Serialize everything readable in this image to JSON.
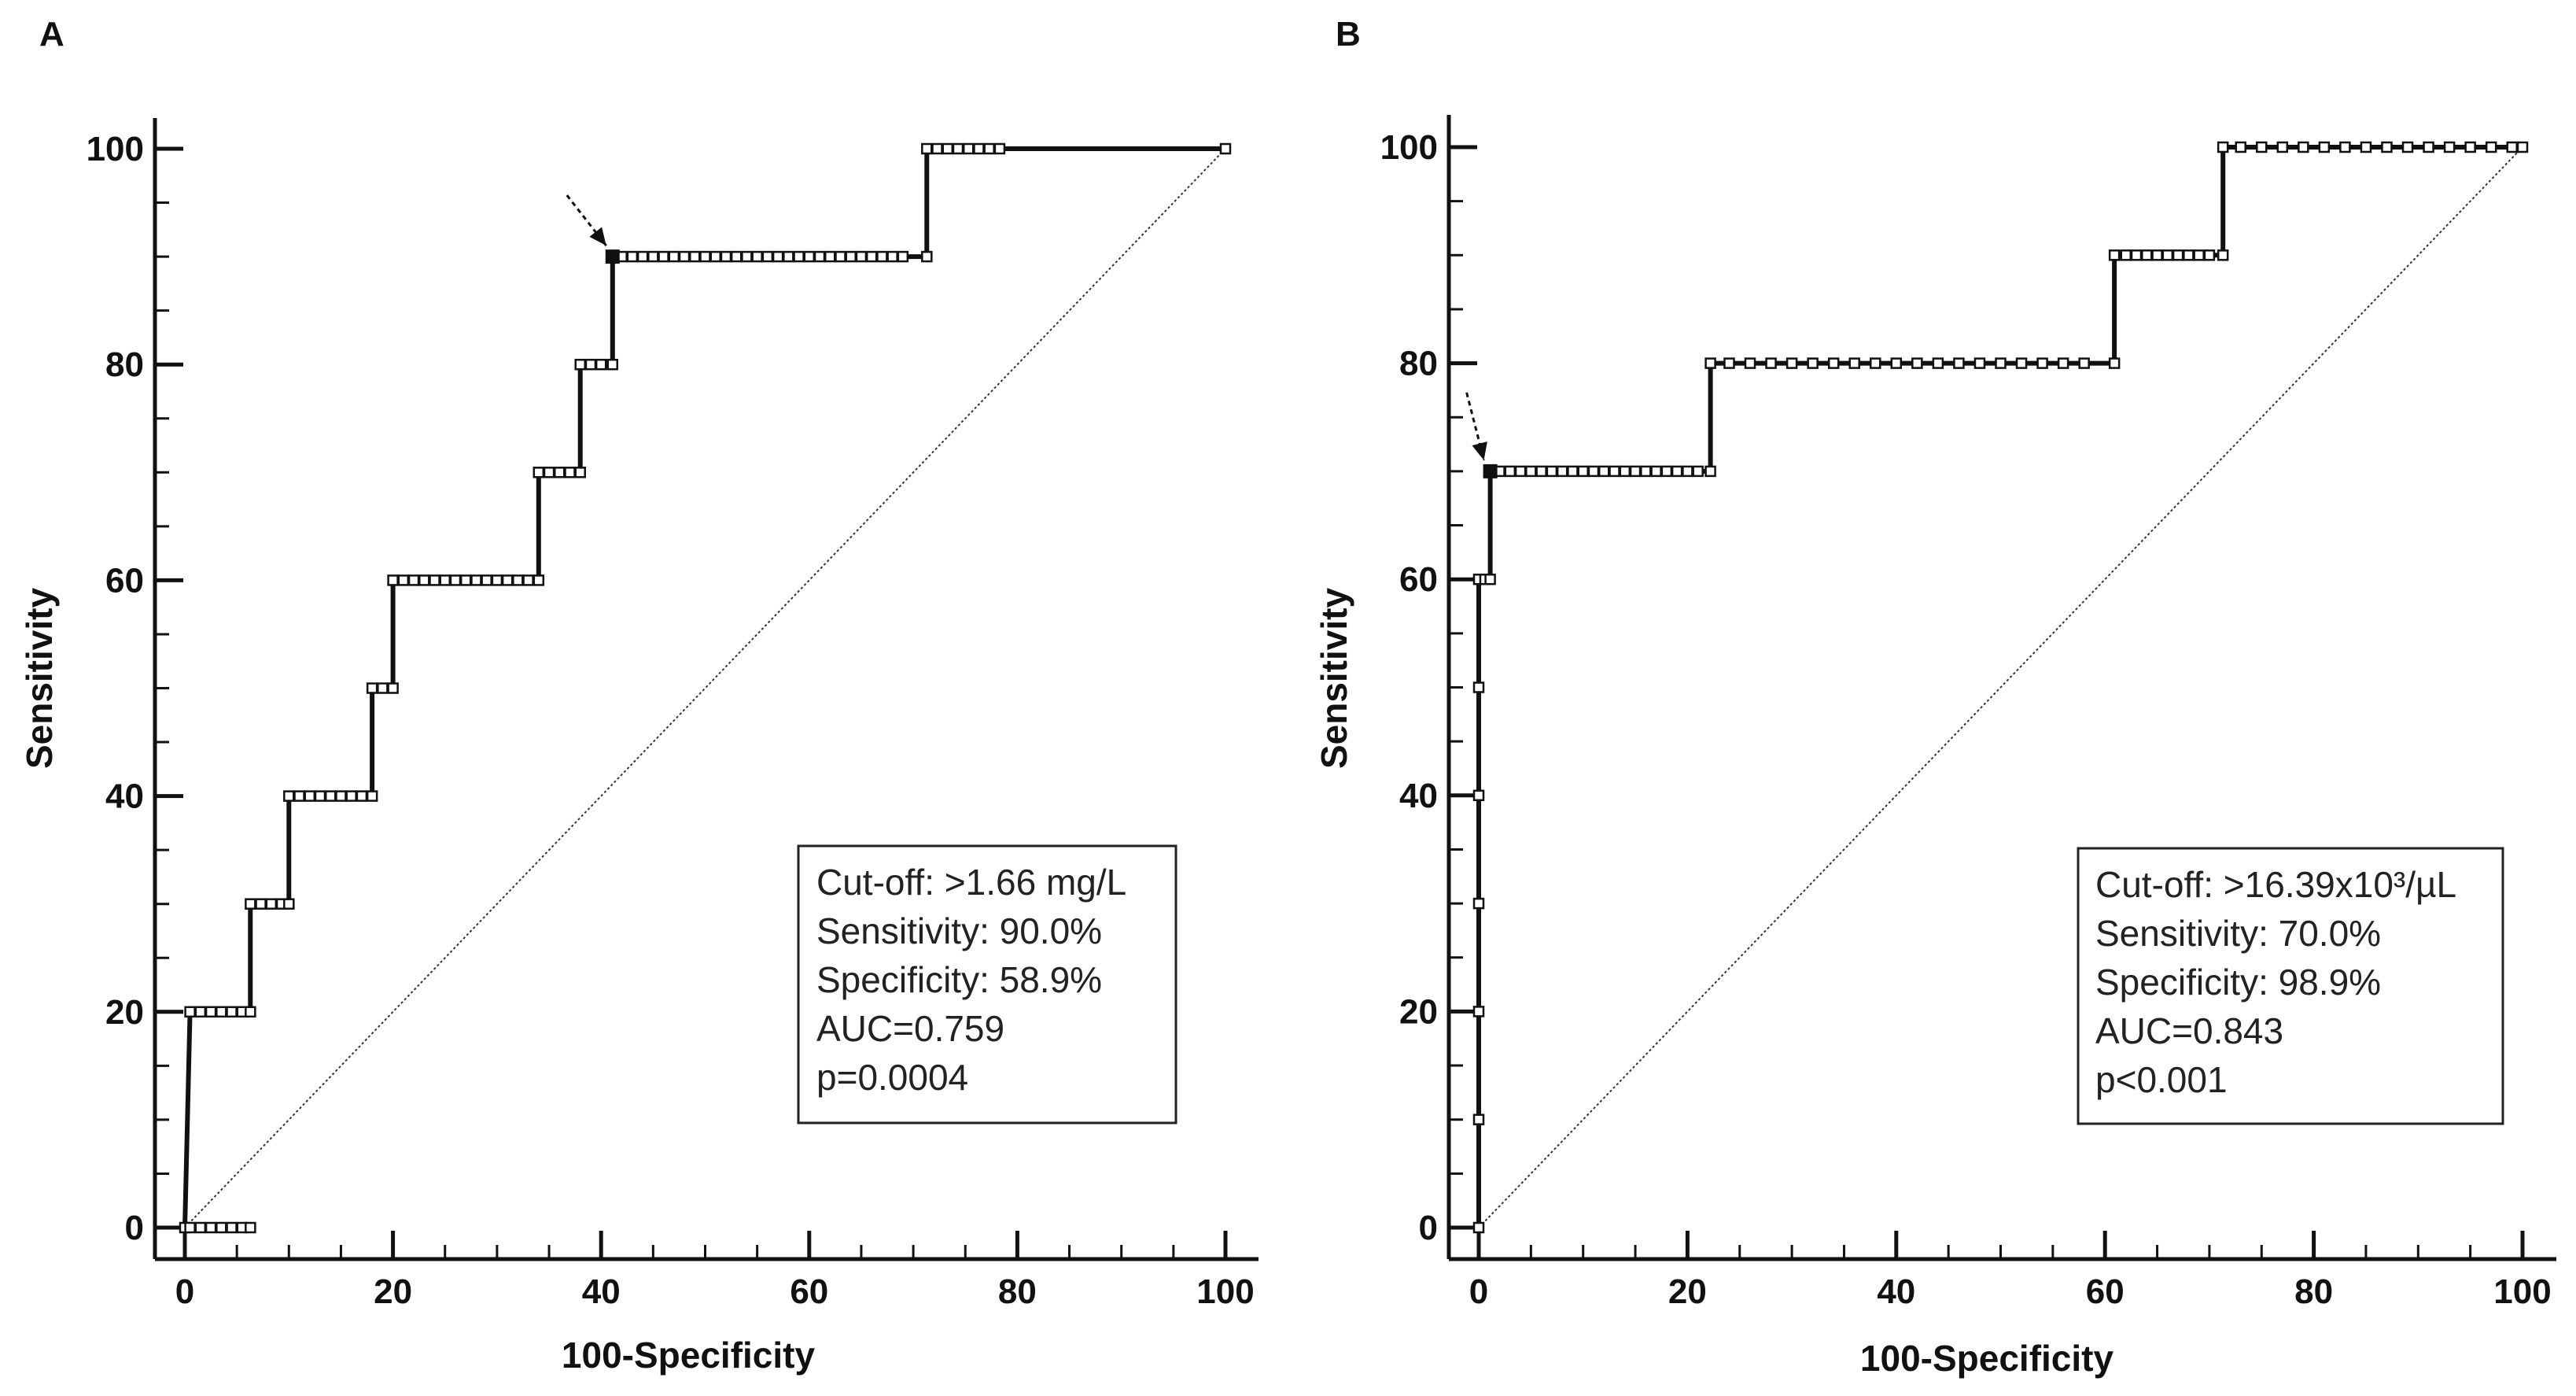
{
  "figure": {
    "background": "#ffffff",
    "ink": "#111111"
  },
  "chart_data": [
    {
      "panel": "A",
      "type": "line",
      "xlabel": "100-Specificity",
      "ylabel": "Sensitivity",
      "xlim": [
        0,
        100
      ],
      "ylim": [
        0,
        100
      ],
      "xticks": [
        "0",
        "20",
        "40",
        "60",
        "80",
        "100"
      ],
      "yticks": [
        "0",
        "20",
        "40",
        "60",
        "80",
        "100"
      ],
      "grid": false,
      "reference_line": {
        "x": [
          0,
          100
        ],
        "y": [
          0,
          100
        ],
        "style": "dotted diagonal"
      },
      "series": [
        {
          "name": "ROC curve",
          "x": [
            0,
            0.5,
            6.3,
            6.3,
            10,
            10,
            18,
            18,
            20,
            20,
            34,
            34,
            38,
            38,
            41.1,
            41.1,
            71.3,
            71.3,
            100
          ],
          "y": [
            0,
            20,
            20,
            30,
            30,
            40,
            40,
            50,
            50,
            60,
            60,
            70,
            70,
            80,
            80,
            90,
            90,
            100,
            100
          ]
        }
      ],
      "markers": {
        "0": [
          0,
          0.5,
          1.5,
          2.5,
          3.5,
          4.5,
          5.5,
          6.3
        ],
        "20": [
          0.5,
          1.5,
          2.5,
          3.5,
          4.5,
          5.5,
          6.3
        ],
        "30": [
          6.3,
          7.3,
          8.3,
          9.3,
          10
        ],
        "40": [
          10,
          11,
          12,
          13,
          14,
          15,
          16,
          17,
          18
        ],
        "50": [
          18,
          19,
          20
        ],
        "60": [
          20,
          21,
          22,
          23,
          24,
          25,
          26,
          27,
          28,
          29,
          30,
          31,
          32,
          33,
          34
        ],
        "70": [
          34,
          35,
          36,
          37,
          38
        ],
        "80": [
          38,
          39,
          40,
          41.1
        ],
        "90": [
          41.1,
          42,
          43,
          44,
          45,
          46,
          47,
          48,
          49,
          50,
          51,
          52,
          53,
          54,
          55,
          56,
          57,
          58,
          59,
          60,
          61,
          62,
          63,
          64,
          65,
          66,
          67,
          68,
          69,
          71.3
        ],
        "100": [
          71.3,
          72.3,
          73.3,
          74.3,
          75.3,
          76.3,
          77.3,
          78.3,
          100
        ]
      },
      "optimal_point": {
        "x": 41.1,
        "y": 90
      },
      "annotation": {
        "lines": [
          "Cut-off: >1.66 mg/L",
          "Sensitivity: 90.0%",
          "Specificity: 58.9%",
          "AUC=0.759",
          "p=0.0004"
        ]
      }
    },
    {
      "panel": "B",
      "type": "line",
      "xlabel": "100-Specificity",
      "ylabel": "Sensitivity",
      "xlim": [
        0,
        100
      ],
      "ylim": [
        0,
        100
      ],
      "xticks": [
        "0",
        "20",
        "40",
        "60",
        "80",
        "100"
      ],
      "yticks": [
        "0",
        "20",
        "40",
        "60",
        "80",
        "100"
      ],
      "grid": false,
      "reference_line": {
        "x": [
          0,
          100
        ],
        "y": [
          0,
          100
        ],
        "style": "dotted diagonal"
      },
      "series": [
        {
          "name": "ROC curve",
          "x": [
            0,
            0,
            1.1,
            1.1,
            22.2,
            22.2,
            60.9,
            60.9,
            71.3,
            71.3,
            100
          ],
          "y": [
            0,
            60,
            60,
            70,
            70,
            80,
            80,
            90,
            90,
            100,
            100
          ]
        }
      ],
      "markers": {
        "0": [
          0
        ],
        "10": [
          0
        ],
        "20": [
          0
        ],
        "30": [
          0
        ],
        "40": [
          0
        ],
        "50": [
          0
        ],
        "60": [
          0,
          0.6,
          1.1
        ],
        "70": [
          1.1,
          2,
          3,
          4,
          5,
          6,
          7,
          8,
          9,
          10,
          11,
          12,
          13,
          14,
          15,
          16,
          17,
          18,
          19,
          20,
          21,
          22.2
        ],
        "80": [
          22.2,
          24,
          26,
          28,
          30,
          32,
          34,
          36,
          38,
          40,
          42,
          44,
          46,
          48,
          50,
          52,
          54,
          56,
          58,
          60.9
        ],
        "90": [
          60.9,
          62,
          63,
          64,
          65,
          66,
          67,
          68,
          69,
          70,
          71.3
        ],
        "100": [
          71.3,
          73,
          75,
          77,
          79,
          81,
          83,
          85,
          87,
          89,
          91,
          93,
          95,
          97,
          99,
          100
        ]
      },
      "optimal_point": {
        "x": 1.1,
        "y": 70
      },
      "annotation": {
        "lines": [
          "Cut-off: >16.39x10³/µL",
          "Sensitivity: 70.0%",
          "Specificity: 98.9%",
          "AUC=0.843",
          "p<0.001"
        ]
      }
    }
  ]
}
